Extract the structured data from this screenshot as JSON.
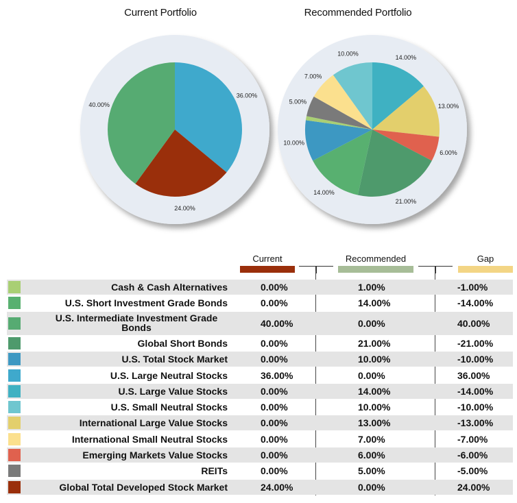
{
  "chart_data": [
    {
      "type": "pie",
      "title": "Current Portfolio",
      "slices": [
        {
          "label": "U.S. Large Neutral Stocks",
          "value": 36.0,
          "text": "36.00%",
          "color": "#3fa9cc"
        },
        {
          "label": "Global Total Developed Stock Market",
          "value": 24.0,
          "text": "24.00%",
          "color": "#9a2f0b"
        },
        {
          "label": "U.S. Intermediate Investment Grade Bonds",
          "value": 40.0,
          "text": "40.00%",
          "color": "#56ab72"
        }
      ]
    },
    {
      "type": "pie",
      "title": "Recommended Portfolio",
      "slices": [
        {
          "label": "U.S. Large Value Stocks",
          "value": 14.0,
          "text": "14.00%",
          "color": "#3fb1c2"
        },
        {
          "label": "International Large Value Stocks",
          "value": 13.0,
          "text": "13.00%",
          "color": "#e3cf6c"
        },
        {
          "label": "Emerging Markets Value Stocks",
          "value": 6.0,
          "text": "6.00%",
          "color": "#e0614e"
        },
        {
          "label": "Global Short Bonds",
          "value": 21.0,
          "text": "21.00%",
          "color": "#4e9a6c"
        },
        {
          "label": "U.S. Short Investment Grade Bonds",
          "value": 14.0,
          "text": "14.00%",
          "color": "#58b070"
        },
        {
          "label": "U.S. Total Stock Market",
          "value": 10.0,
          "text": "10.00%",
          "color": "#3d98c2"
        },
        {
          "label": "Cash & Cash Alternatives",
          "value": 1.0,
          "text": "",
          "color": "#a9cf74"
        },
        {
          "label": "REITs",
          "value": 5.0,
          "text": "5.00%",
          "color": "#7a7a7a"
        },
        {
          "label": "International Small Neutral Stocks",
          "value": 7.0,
          "text": "7.00%",
          "color": "#fbe08e"
        },
        {
          "label": "U.S. Small Neutral Stocks",
          "value": 10.0,
          "text": "10.00%",
          "color": "#6fc6cf"
        }
      ]
    }
  ],
  "table": {
    "headers": {
      "current": "Current",
      "recommended": "Recommended",
      "gap": "Gap"
    },
    "header_colors": {
      "current": "#9a2f0b",
      "recommended": "#a7bd98",
      "gap": "#f3d585"
    },
    "rows": [
      {
        "label": "Cash & Cash Alternatives",
        "current": "0.00%",
        "recommended": "1.00%",
        "gap": "-1.00%",
        "color": "#a9cf74"
      },
      {
        "label": "U.S. Short Investment Grade Bonds",
        "current": "0.00%",
        "recommended": "14.00%",
        "gap": "-14.00%",
        "color": "#58b070"
      },
      {
        "label": "U.S. Intermediate Investment Grade Bonds",
        "current": "40.00%",
        "recommended": "0.00%",
        "gap": "40.00%",
        "color": "#56ab72"
      },
      {
        "label": "Global Short Bonds",
        "current": "0.00%",
        "recommended": "21.00%",
        "gap": "-21.00%",
        "color": "#4e9a6c"
      },
      {
        "label": "U.S. Total Stock Market",
        "current": "0.00%",
        "recommended": "10.00%",
        "gap": "-10.00%",
        "color": "#3d98c2"
      },
      {
        "label": "U.S. Large Neutral Stocks",
        "current": "36.00%",
        "recommended": "0.00%",
        "gap": "36.00%",
        "color": "#3fa9cc"
      },
      {
        "label": "U.S. Large Value Stocks",
        "current": "0.00%",
        "recommended": "14.00%",
        "gap": "-14.00%",
        "color": "#3fb1c2"
      },
      {
        "label": "U.S. Small Neutral Stocks",
        "current": "0.00%",
        "recommended": "10.00%",
        "gap": "-10.00%",
        "color": "#6fc6cf"
      },
      {
        "label": "International Large Value Stocks",
        "current": "0.00%",
        "recommended": "13.00%",
        "gap": "-13.00%",
        "color": "#e3cf6c"
      },
      {
        "label": "International Small Neutral Stocks",
        "current": "0.00%",
        "recommended": "7.00%",
        "gap": "-7.00%",
        "color": "#fbe08e"
      },
      {
        "label": "Emerging Markets Value Stocks",
        "current": "0.00%",
        "recommended": "6.00%",
        "gap": "-6.00%",
        "color": "#e0614e"
      },
      {
        "label": "REITs",
        "current": "0.00%",
        "recommended": "5.00%",
        "gap": "-5.00%",
        "color": "#7a7a7a"
      },
      {
        "label": "Global Total Developed Stock Market",
        "current": "24.00%",
        "recommended": "0.00%",
        "gap": "24.00%",
        "color": "#9a2f0b"
      }
    ]
  }
}
